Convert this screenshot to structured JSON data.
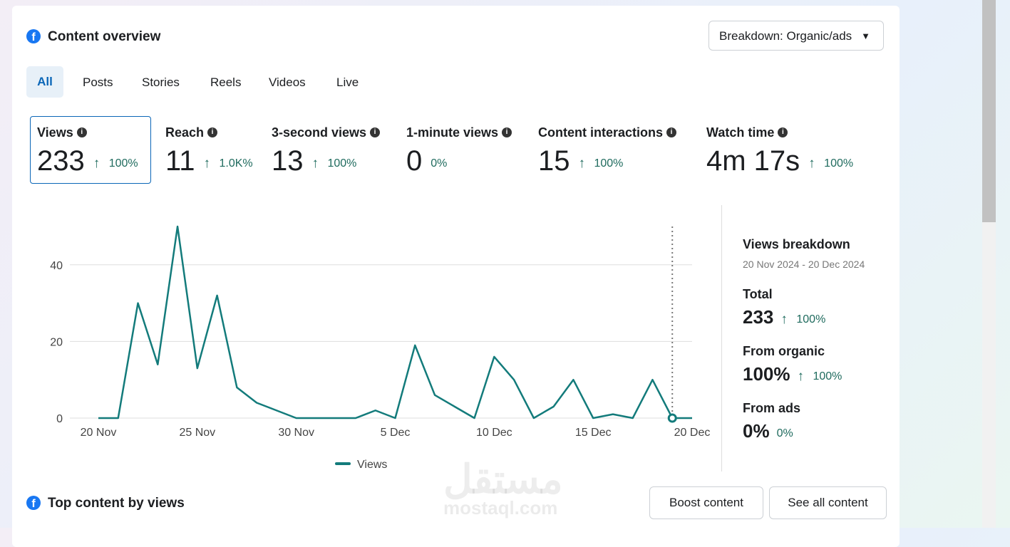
{
  "header": {
    "title": "Content overview",
    "breakdown": "Breakdown: Organic/ads"
  },
  "tabs": [
    "All",
    "Posts",
    "Stories",
    "Reels",
    "Videos",
    "Live"
  ],
  "metrics": [
    {
      "name": "Views",
      "value": "233",
      "change": "100%",
      "up": true
    },
    {
      "name": "Reach",
      "value": "11",
      "change": "1.0K%",
      "up": true
    },
    {
      "name": "3-second views",
      "value": "13",
      "change": "100%",
      "up": true
    },
    {
      "name": "1-minute views",
      "value": "0",
      "change": "0%",
      "up": false
    },
    {
      "name": "Content interactions",
      "value": "15",
      "change": "100%",
      "up": true
    },
    {
      "name": "Watch time",
      "value": "4m 17s",
      "change": "100%",
      "up": true
    }
  ],
  "chart_data": {
    "type": "line",
    "categories": [
      "20 Nov",
      null,
      null,
      null,
      null,
      "25 Nov",
      null,
      null,
      null,
      null,
      "30 Nov",
      null,
      null,
      null,
      null,
      "5 Dec",
      null,
      null,
      null,
      null,
      "10 Dec",
      null,
      null,
      null,
      null,
      "15 Dec",
      null,
      null,
      null,
      null,
      "20 Dec"
    ],
    "series": [
      {
        "name": "Views",
        "color": "#137b7b",
        "values": [
          0,
          0,
          30,
          14,
          50,
          13,
          32,
          8,
          4,
          2,
          0,
          0,
          0,
          0,
          2,
          0,
          19,
          6,
          3,
          0,
          16,
          10,
          0,
          3,
          10,
          0,
          1,
          0,
          10,
          0,
          0
        ]
      }
    ],
    "ylim": [
      0,
      50
    ],
    "yticks": [
      0,
      20,
      40
    ],
    "grid": true
  },
  "breakdown": {
    "title": "Views breakdown",
    "range": "20 Nov 2024 - 20 Dec 2024",
    "items": [
      {
        "label": "Total",
        "value": "233",
        "change": "100%",
        "up": true
      },
      {
        "label": "From organic",
        "value": "100%",
        "change": "100%",
        "up": true
      },
      {
        "label": "From ads",
        "value": "0%",
        "change": "0%",
        "up": false
      }
    ]
  },
  "top_content": {
    "title": "Top content by views",
    "buttons": [
      "Boost content",
      "See all content"
    ]
  },
  "watermark": {
    "arabic": "مستقل",
    "latin": "mostaql.com"
  }
}
